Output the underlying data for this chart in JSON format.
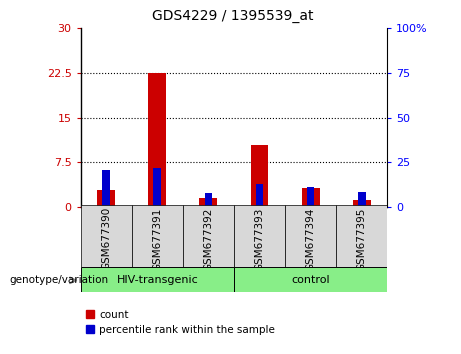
{
  "title": "GDS4229 / 1395539_at",
  "samples": [
    "GSM677390",
    "GSM677391",
    "GSM677392",
    "GSM677393",
    "GSM677394",
    "GSM677395"
  ],
  "count_values": [
    2.8,
    22.5,
    1.5,
    10.5,
    3.2,
    1.2
  ],
  "percentile_values": [
    21.0,
    22.0,
    8.0,
    13.0,
    11.0,
    8.5
  ],
  "left_ylim": [
    0,
    30
  ],
  "right_ylim": [
    0,
    100
  ],
  "left_yticks": [
    0,
    7.5,
    15,
    22.5,
    30
  ],
  "right_yticks": [
    0,
    25,
    50,
    75,
    100
  ],
  "left_yticklabels": [
    "0",
    "7.5",
    "15",
    "22.5",
    "30"
  ],
  "right_yticklabels": [
    "0",
    "25",
    "50",
    "75",
    "100%"
  ],
  "count_color": "#cc0000",
  "percentile_color": "#0000cc",
  "group1_label": "HIV-transgenic",
  "group2_label": "control",
  "group_color": "#88ee88",
  "ticklabel_bg": "#d8d8d8",
  "legend_label_count": "count",
  "legend_label_percentile": "percentile rank within the sample",
  "xlabel_genotype": "genotype/variation",
  "plot_bg": "#ffffff"
}
